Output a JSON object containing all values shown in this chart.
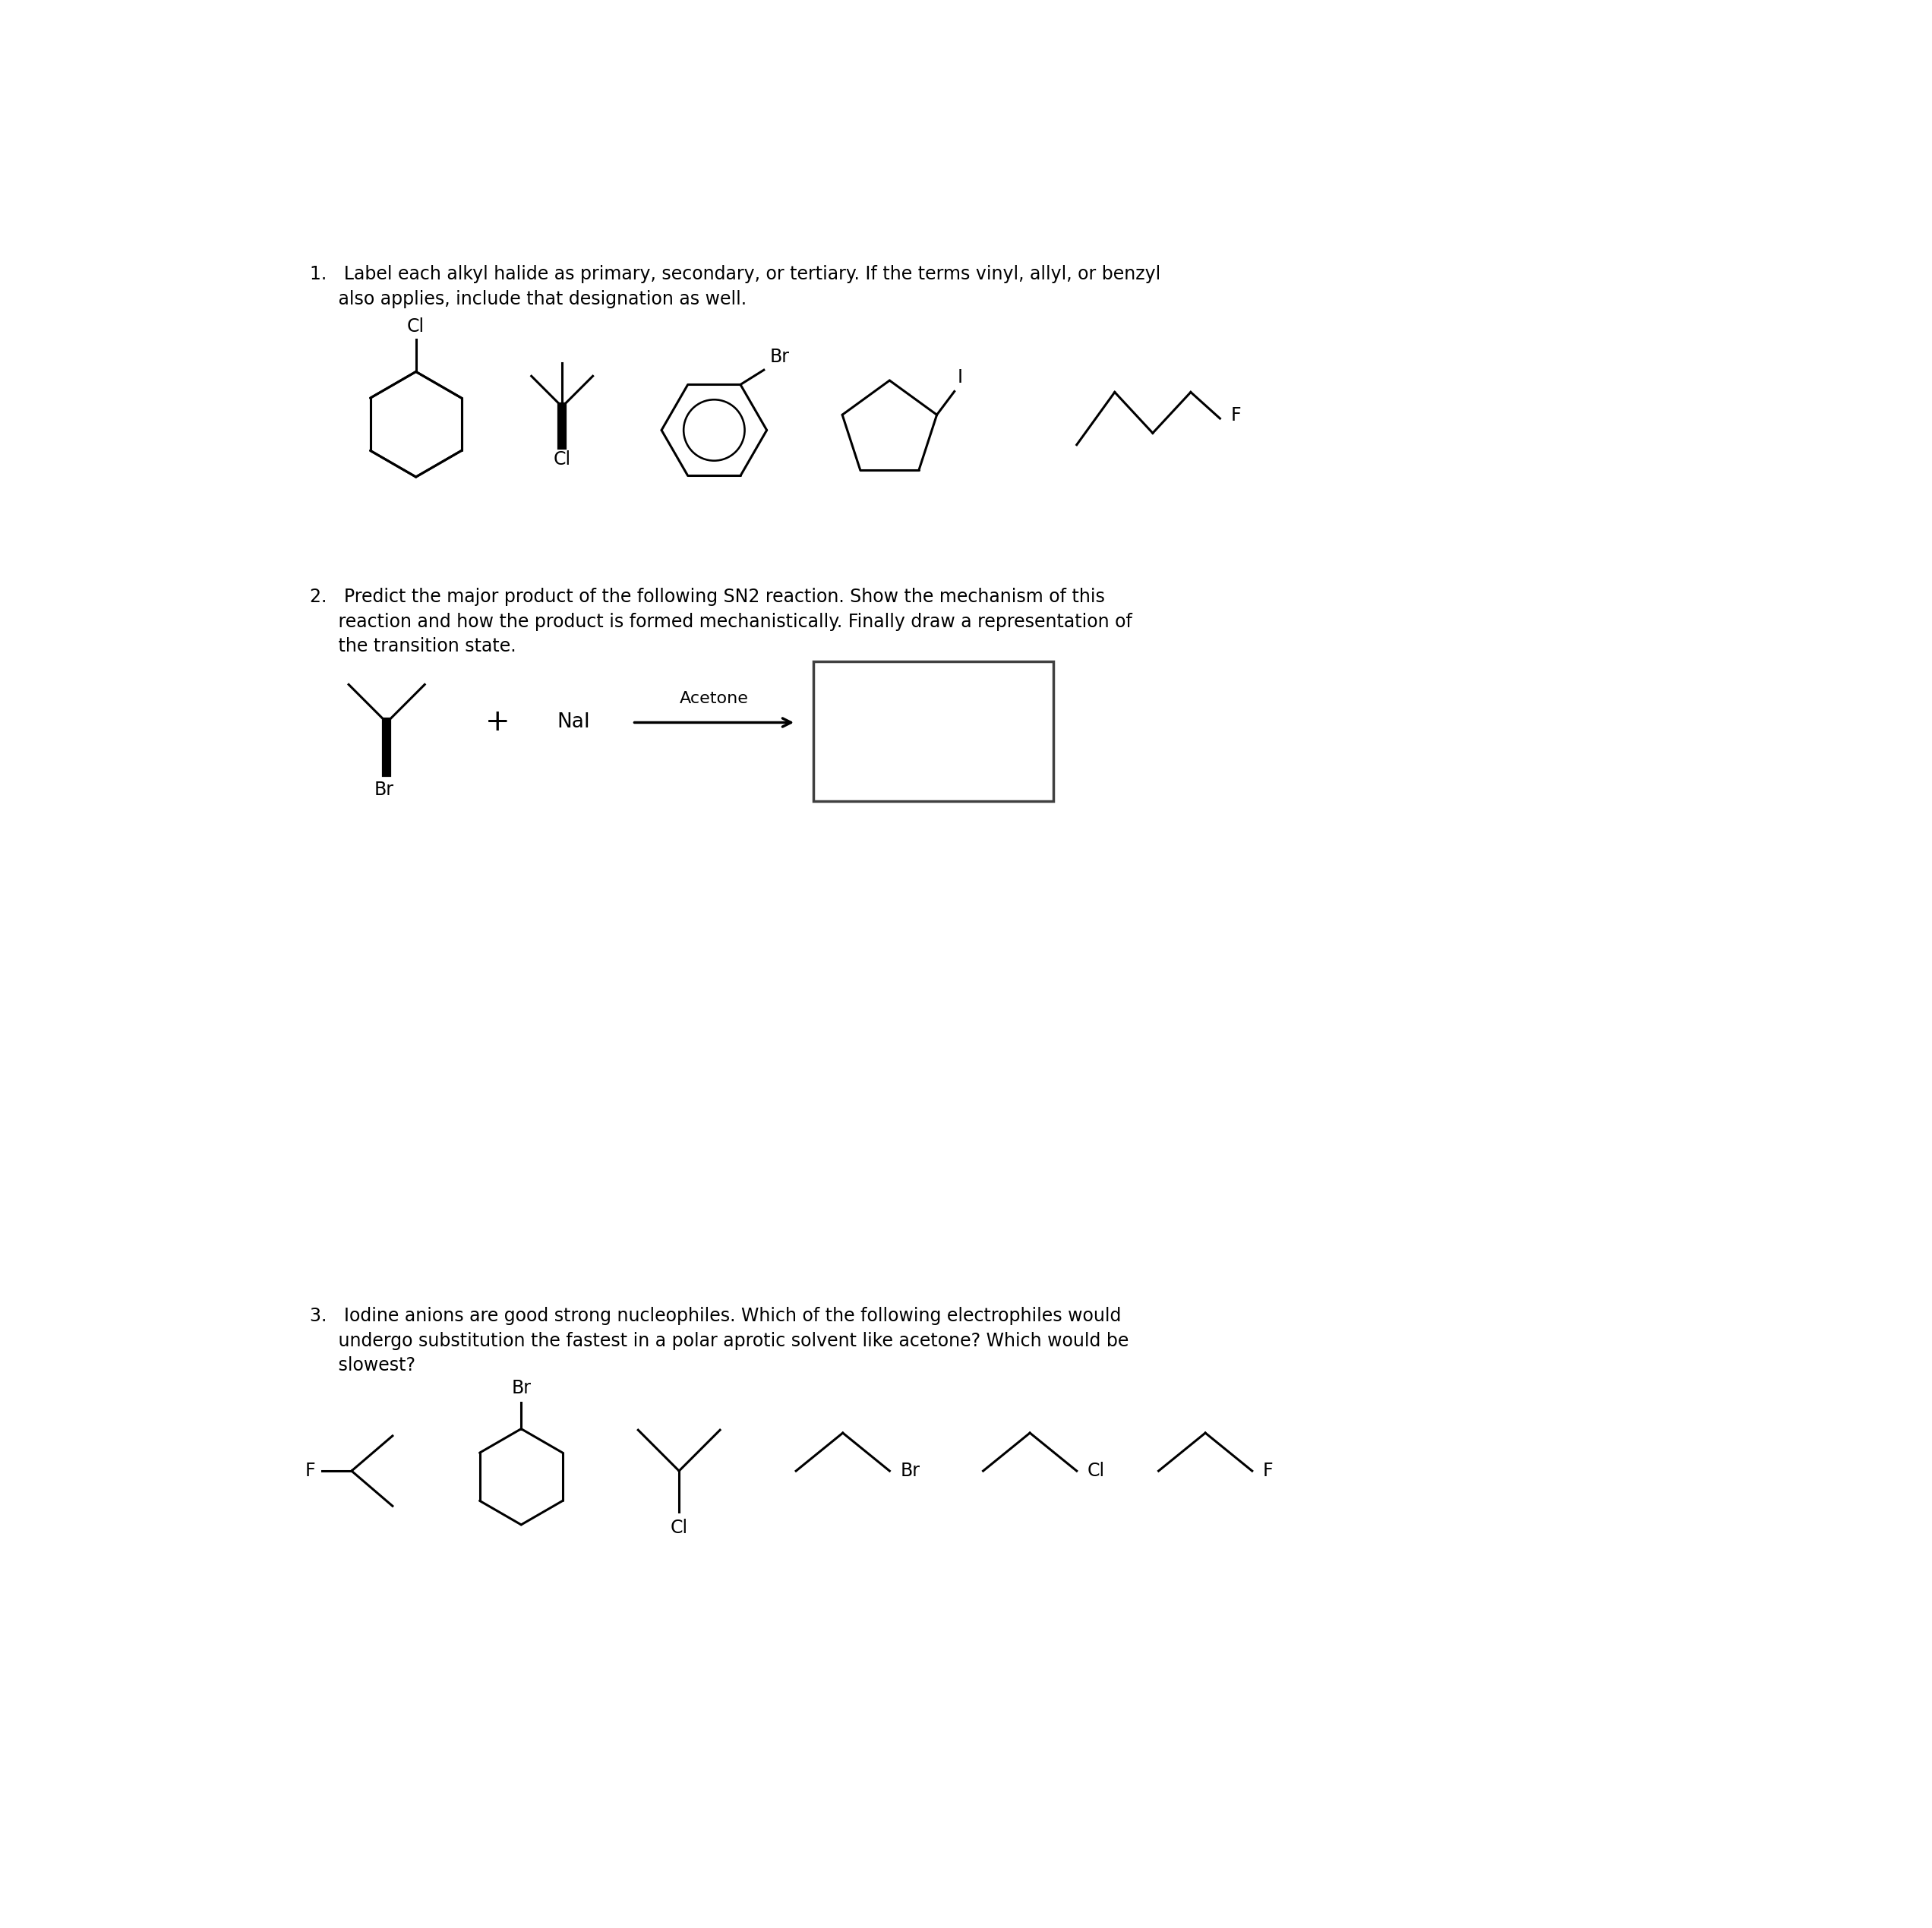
{
  "bg_color": "#ffffff",
  "text_color": "#000000",
  "q1_line1": "1.   Label each alkyl halide as primary, secondary, or tertiary. If the terms vinyl, allyl, or benzyl",
  "q1_line2": "     also applies, include that designation as well.",
  "q2_line1": "2.   Predict the major product of the following SN2 reaction. Show the mechanism of this",
  "q2_line2": "     reaction and how the product is formed mechanistically. Finally draw a representation of",
  "q2_line3": "     the transition state.",
  "q3_line1": "3.   Iodine anions are good strong nucleophiles. Which of the following electrophiles would",
  "q3_line2": "     undergo substitution the fastest in a polar aprotic solvent like acetone? Which would be",
  "q3_line3": "     slowest?",
  "font_size": 17,
  "line_width": 1.8
}
